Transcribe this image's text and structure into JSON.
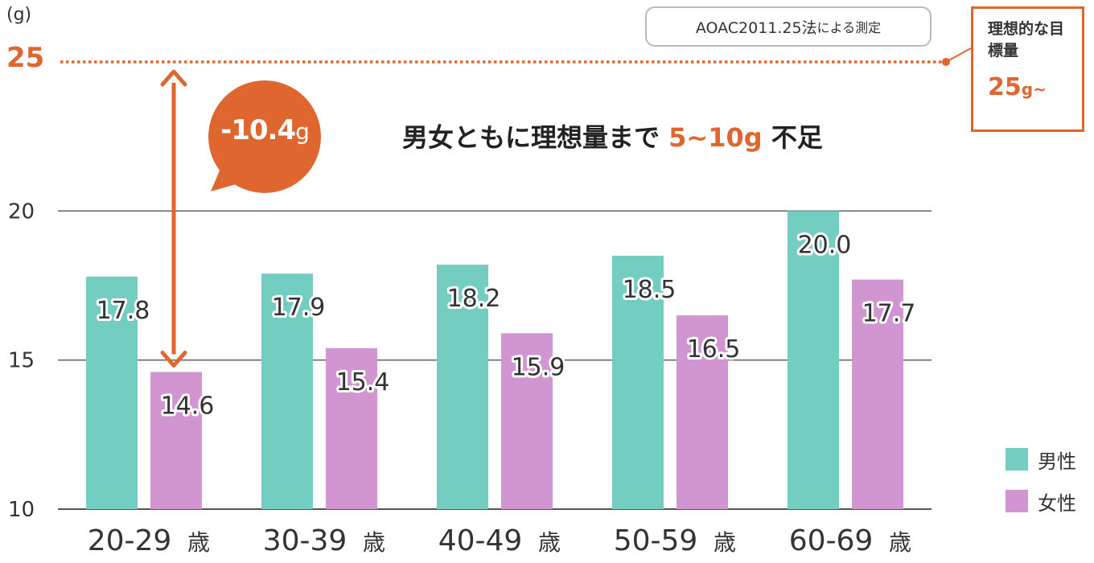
{
  "colors": {
    "male": "#74CDC1",
    "female": "#D195D2",
    "accent": "#E0662F",
    "grid": "#555555"
  },
  "header": {
    "unit_label": "(g)",
    "target_value": "25",
    "method_prefix": "AOAC2011.25法",
    "method_suffix": "による測定"
  },
  "target_box": {
    "title": "理想的な目標量",
    "value": "25",
    "value_unit": "g~"
  },
  "deficit_bubble": {
    "value": "-10.4",
    "unit": "g"
  },
  "headline": {
    "prefix": "男女ともに理想量まで ",
    "accent": "5~10g",
    "suffix": " 不足"
  },
  "chart_data": {
    "type": "bar",
    "title": "男女ともに理想量まで 5~10g 不足",
    "ylabel": "(g)",
    "xlabel": "",
    "ylim": [
      10,
      25
    ],
    "yticks": [
      10,
      15,
      20,
      25
    ],
    "grid": true,
    "category_unit": "歳",
    "categories": [
      "20-29",
      "30-39",
      "40-49",
      "50-59",
      "60-69"
    ],
    "series": [
      {
        "name": "男性",
        "values": [
          17.8,
          17.9,
          18.2,
          18.5,
          20.0
        ]
      },
      {
        "name": "女性",
        "values": [
          14.6,
          15.4,
          15.9,
          16.5,
          17.7
        ]
      }
    ],
    "value_labels": [
      [
        "17.8",
        "17.9",
        "18.2",
        "18.5",
        "20.0"
      ],
      [
        "14.6",
        "15.4",
        "15.9",
        "16.5",
        "17.7"
      ]
    ],
    "target_line": 25,
    "deficit_annotation": {
      "category": "20-29",
      "from": 14.6,
      "to": 25,
      "label": "-10.4g"
    },
    "legend": [
      "男性",
      "女性"
    ],
    "legend_position": "bottom-right"
  }
}
